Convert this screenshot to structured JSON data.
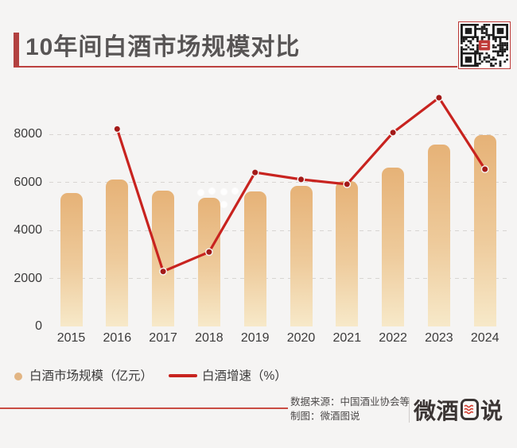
{
  "title": "10年间白酒市场规模对比",
  "chart_data": {
    "type": "bar+line",
    "title": "10年间白酒市场规模对比",
    "categories": [
      "2015",
      "2016",
      "2017",
      "2018",
      "2019",
      "2020",
      "2021",
      "2022",
      "2023",
      "2024"
    ],
    "y_ticks": [
      "0",
      "2000",
      "4000",
      "6000",
      "8000"
    ],
    "y_axis_range": [
      0,
      10000
    ],
    "grid": "dashed horizontal gridlines",
    "legend_position": "bottom-left",
    "series": [
      {
        "name": "白酒市场规模（亿元）",
        "type": "bar",
        "values": [
          5559,
          6126,
          5654,
          5364,
          5618,
          5836,
          6034,
          6627,
          7563,
          7963
        ]
      },
      {
        "name": "白酒增速（%）",
        "type": "line",
        "values": [
          null,
          10.2,
          -7.7,
          -5.1,
          4.7,
          3.9,
          3.4,
          9.8,
          14.1,
          5.3
        ],
        "plotted_left_axis_units": [
          null,
          8220,
          2290,
          3100,
          6410,
          6120,
          5920,
          8070,
          9520,
          6545
        ],
        "note": "percent values drawn against a hidden secondary axis; plotted positions given in left-axis units"
      }
    ]
  },
  "legend": {
    "items": [
      {
        "label": "白酒市场规模（亿元）",
        "marker": "circle"
      },
      {
        "label": "白酒增速（%）",
        "marker": "line"
      }
    ]
  },
  "footer": {
    "source_line": "数据来源：中国酒业协会等",
    "credit_line": "制图：微酒图说",
    "logo": {
      "prefix": "微酒",
      "boxed": "图",
      "suffix": "说"
    }
  },
  "icons": {
    "qr": "qr-code",
    "logo_box": "red-wave-chart-icon"
  },
  "colors": {
    "background": "#f5f4f3",
    "title_text": "#585555",
    "accent_red": "#b24140",
    "rule_red": "#bc403e",
    "line_red": "#c8231f",
    "marker_red": "#a31a18",
    "marker_ring": "#f6f5f4",
    "bar_gradient_top": "#e6b277",
    "bar_gradient_bottom": "#f7e9c9",
    "tick_text": "#3c3b3b",
    "legend_dot": "#e2b583",
    "footer_text": "#4c4949",
    "logo_dark": "#3b3534",
    "qr_border": "#bf3a38"
  }
}
